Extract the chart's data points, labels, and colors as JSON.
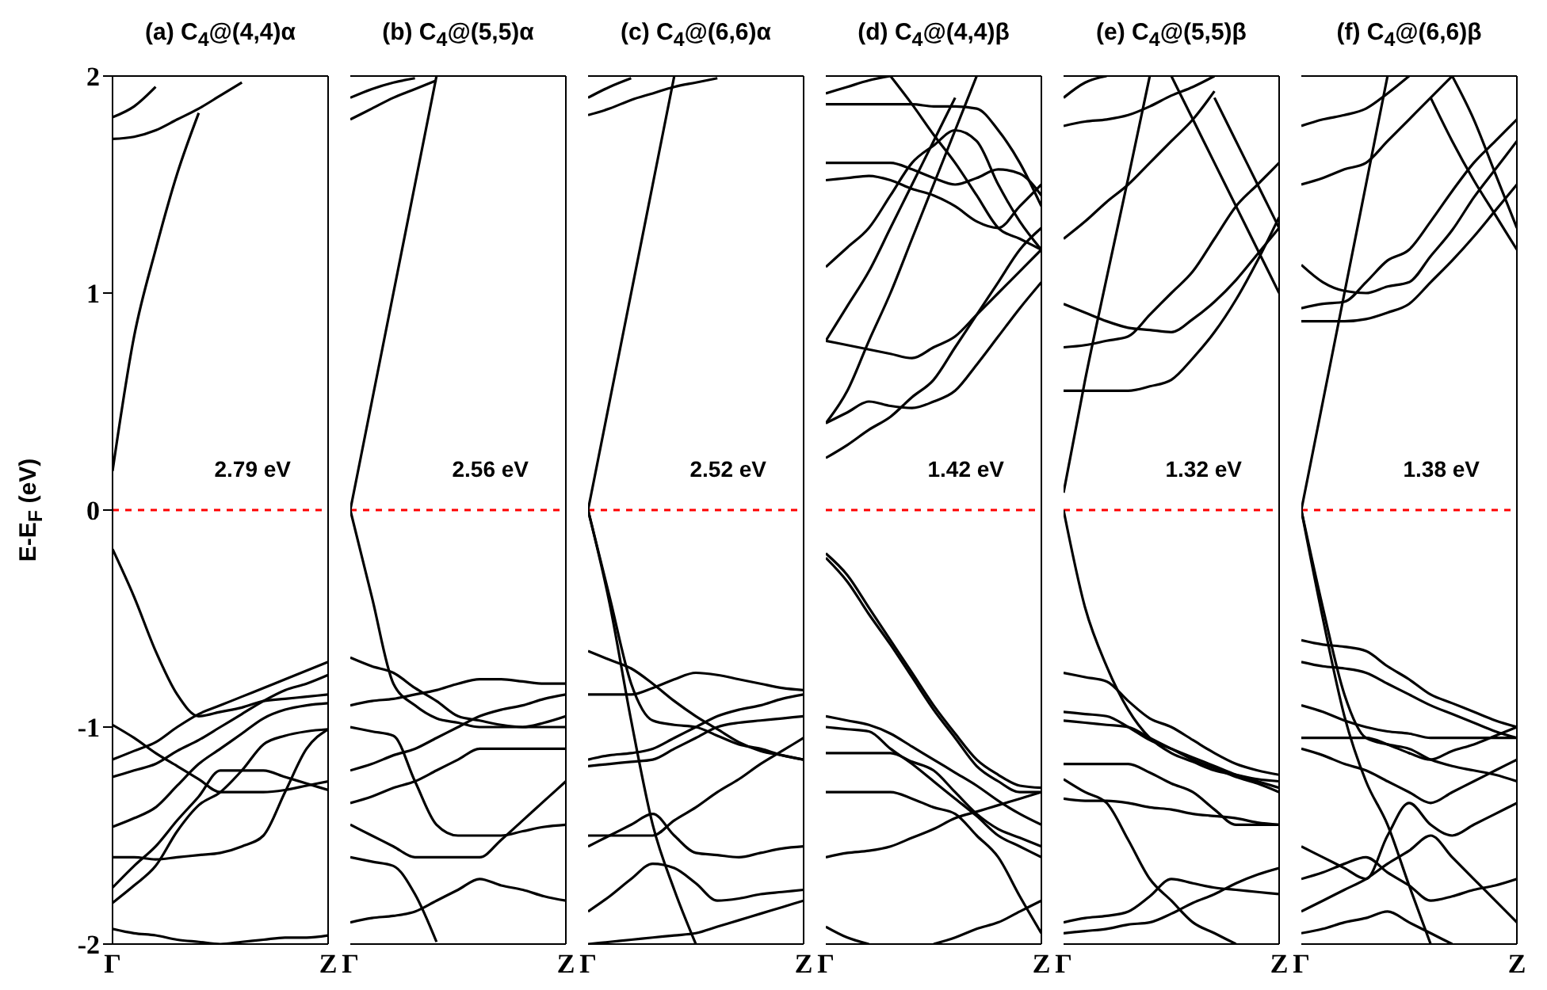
{
  "chart_data": [
    {
      "type": "line",
      "title": "(a) C$_{4}$@(4,4)α",
      "ylabel": "E-E$_{F}$ (eV)",
      "annotations": [
        "2.79 eV"
      ],
      "categories": [
        "Γ",
        null,
        null,
        null,
        null,
        null,
        null,
        null,
        null,
        null,
        "Z"
      ],
      "ylim": [
        -2,
        2
      ],
      "yticks": [
        -2,
        -1,
        0,
        1,
        2
      ],
      "ref_lines": [
        {
          "axis": "y",
          "value": 0,
          "color": "#ff0000",
          "line_style": "dashed"
        }
      ],
      "series": [
        {
          "color": "#000000",
          "values": [
            0.18,
            0.8,
            1.2,
            1.55,
            1.83,
            null,
            null,
            null,
            null,
            null,
            null
          ]
        },
        {
          "color": "#000000",
          "values": [
            1.71,
            1.72,
            1.75,
            1.8,
            1.85,
            1.91,
            1.97,
            null,
            null,
            null,
            null
          ]
        },
        {
          "color": "#000000",
          "values": [
            1.81,
            1.86,
            1.95,
            null,
            null,
            null,
            null,
            null,
            null,
            null,
            null
          ]
        },
        {
          "color": "#000000",
          "values": [
            -0.18,
            -0.4,
            -0.65,
            -0.85,
            -0.95,
            -0.93,
            -0.91,
            -0.88,
            -0.87,
            -0.86,
            -0.85
          ]
        },
        {
          "color": "#000000",
          "values": [
            -0.99,
            -1.05,
            -1.12,
            -1.18,
            -1.24,
            -1.3,
            -1.3,
            -1.3,
            -1.29,
            -1.27,
            -1.25
          ]
        },
        {
          "color": "#000000",
          "values": [
            -1.15,
            -1.11,
            -1.07,
            -1.0,
            -0.94,
            -0.9,
            -0.86,
            -0.82,
            -0.78,
            -0.74,
            -0.7
          ]
        },
        {
          "color": "#000000",
          "values": [
            -1.23,
            -1.2,
            -1.17,
            -1.11,
            -1.06,
            -1.0,
            -0.94,
            -0.88,
            -0.83,
            -0.8,
            -0.76
          ]
        },
        {
          "color": "#000000",
          "values": [
            -1.46,
            -1.42,
            -1.37,
            -1.27,
            -1.17,
            -1.1,
            -1.03,
            -0.96,
            -0.92,
            -0.9,
            -0.89
          ]
        },
        {
          "color": "#000000",
          "values": [
            -1.6,
            -1.6,
            -1.61,
            -1.6,
            -1.59,
            -1.58,
            -1.55,
            -1.5,
            -1.3,
            -1.1,
            -1.01
          ]
        },
        {
          "color": "#000000",
          "values": [
            -1.74,
            -1.64,
            -1.55,
            -1.43,
            -1.32,
            -1.2,
            -1.2,
            -1.2,
            -1.23,
            -1.26,
            -1.29
          ]
        },
        {
          "color": "#000000",
          "values": [
            -1.81,
            -1.73,
            -1.64,
            -1.48,
            -1.36,
            -1.3,
            -1.2,
            -1.08,
            -1.04,
            -1.02,
            -1.01
          ]
        },
        {
          "color": "#000000",
          "values": [
            -1.93,
            -1.95,
            -1.96,
            -1.98,
            -1.99,
            -2,
            -1.99,
            -1.98,
            -1.97,
            -1.97,
            -1.96
          ]
        }
      ]
    },
    {
      "type": "line",
      "title": "(b) C$_{4}$@(5,5)α",
      "annotations": [
        "2.56 eV"
      ],
      "tick_labels": "x",
      "categories": [
        "Γ",
        null,
        null,
        null,
        null,
        null,
        null,
        null,
        null,
        null,
        "Z"
      ],
      "ylim": [
        -2,
        2
      ],
      "yticks": [
        -2,
        -1,
        0,
        1,
        2
      ],
      "ref_lines": [
        {
          "axis": "y",
          "value": 0,
          "color": "#ff0000",
          "line_style": "dashed"
        }
      ],
      "series": [
        {
          "color": "#000000",
          "values": [
            0,
            0.5,
            1,
            1.5,
            2,
            null,
            null,
            null,
            null,
            null,
            null
          ]
        },
        {
          "color": "#000000",
          "values": [
            1.8,
            1.85,
            1.9,
            1.94,
            1.98,
            null,
            null,
            null,
            null,
            null,
            null
          ]
        },
        {
          "color": "#000000",
          "values": [
            1.9,
            1.94,
            1.97,
            1.99,
            null,
            null,
            null,
            null,
            null,
            null,
            null
          ]
        },
        {
          "color": "#000000",
          "values": [
            0,
            -0.4,
            -0.8,
            -0.9,
            -0.96,
            -0.98,
            -1,
            -1,
            -1,
            -1,
            -1
          ]
        },
        {
          "color": "#000000",
          "values": [
            -0.68,
            -0.72,
            -0.75,
            -0.82,
            -0.88,
            -0.95,
            -0.97,
            -0.99,
            -1,
            -0.98,
            -0.95
          ]
        },
        {
          "color": "#000000",
          "values": [
            -0.9,
            -0.88,
            -0.87,
            -0.85,
            -0.83,
            -0.8,
            -0.78,
            -0.78,
            -0.79,
            -0.8,
            -0.8
          ]
        },
        {
          "color": "#000000",
          "values": [
            -1,
            -1.02,
            -1.04,
            -1.25,
            -1.45,
            -1.5,
            -1.5,
            -1.5,
            -1.48,
            -1.46,
            -1.45
          ]
        },
        {
          "color": "#000000",
          "values": [
            -1.2,
            -1.17,
            -1.13,
            -1.1,
            -1.05,
            -1,
            -0.95,
            -0.92,
            -0.9,
            -0.87,
            -0.85
          ]
        },
        {
          "color": "#000000",
          "values": [
            -1.35,
            -1.32,
            -1.28,
            -1.25,
            -1.2,
            -1.15,
            -1.1,
            -1.1,
            -1.1,
            -1.1,
            -1.1
          ]
        },
        {
          "color": "#000000",
          "values": [
            -1.45,
            -1.5,
            -1.55,
            -1.6,
            -1.6,
            -1.6,
            -1.6,
            -1.52,
            -1.43,
            -1.34,
            -1.25
          ]
        },
        {
          "color": "#000000",
          "values": [
            -1.6,
            -1.62,
            -1.64,
            -1.77,
            -1.99,
            null,
            null,
            null,
            null,
            null,
            null
          ]
        },
        {
          "color": "#000000",
          "values": [
            -1.9,
            -1.88,
            -1.87,
            -1.85,
            -1.8,
            -1.75,
            -1.7,
            -1.73,
            -1.75,
            -1.78,
            -1.8
          ]
        }
      ]
    },
    {
      "type": "line",
      "title": "(c) C$_{4}$@(6,6)α",
      "annotations": [
        "2.52 eV"
      ],
      "tick_labels": "x",
      "categories": [
        "Γ",
        null,
        null,
        null,
        null,
        null,
        null,
        null,
        null,
        null,
        "Z"
      ],
      "ylim": [
        -2,
        2
      ],
      "yticks": [
        -2,
        -1,
        0,
        1,
        2
      ],
      "ref_lines": [
        {
          "axis": "y",
          "value": 0,
          "color": "#ff0000",
          "line_style": "dashed"
        }
      ],
      "series": [
        {
          "color": "#000000",
          "values": [
            0,
            0.5,
            1,
            1.5,
            2,
            null,
            null,
            null,
            null,
            null,
            null
          ]
        },
        {
          "color": "#000000",
          "values": [
            1.82,
            1.85,
            1.89,
            1.92,
            1.95,
            1.97,
            1.99,
            null,
            null,
            null,
            null
          ]
        },
        {
          "color": "#000000",
          "values": [
            1.9,
            1.95,
            1.99,
            null,
            null,
            null,
            null,
            null,
            null,
            null,
            null
          ]
        },
        {
          "color": "#000000",
          "values": [
            0,
            -0.4,
            -0.8,
            -0.97,
            -0.99,
            -1,
            -1.04,
            -1.08,
            -1.1,
            -1.13,
            -1.15
          ]
        },
        {
          "color": "#000000",
          "values": [
            0,
            -0.43,
            -0.97,
            -1.45,
            -1.75,
            -2,
            null,
            null,
            null,
            null,
            null
          ]
        },
        {
          "color": "#000000",
          "values": [
            -0.65,
            -0.69,
            -0.73,
            -0.8,
            -0.88,
            -0.95,
            -1.01,
            -1.07,
            -1.11,
            -1.13,
            -1.15
          ]
        },
        {
          "color": "#000000",
          "values": [
            -0.85,
            -0.85,
            -0.85,
            -0.82,
            -0.78,
            -0.75,
            -0.76,
            -0.78,
            -0.8,
            -0.82,
            -0.83
          ]
        },
        {
          "color": "#000000",
          "values": [
            -1.15,
            -1.13,
            -1.12,
            -1.1,
            -1.05,
            -1.0,
            -0.95,
            -0.92,
            -0.9,
            -0.87,
            -0.85
          ]
        },
        {
          "color": "#000000",
          "values": [
            -1.18,
            -1.17,
            -1.16,
            -1.15,
            -1.1,
            -1.05,
            -1.0,
            -0.98,
            -0.97,
            -0.96,
            -0.95
          ]
        },
        {
          "color": "#000000",
          "values": [
            -1.5,
            -1.5,
            -1.5,
            -1.5,
            -1.43,
            -1.37,
            -1.3,
            -1.24,
            -1.17,
            -1.11,
            -1.05
          ]
        },
        {
          "color": "#000000",
          "values": [
            -1.55,
            -1.5,
            -1.45,
            -1.4,
            -1.5,
            -1.58,
            -1.59,
            -1.6,
            -1.58,
            -1.56,
            -1.55
          ]
        },
        {
          "color": "#000000",
          "values": [
            -1.85,
            -1.78,
            -1.7,
            -1.63,
            -1.65,
            -1.72,
            -1.8,
            -1.79,
            -1.77,
            -1.76,
            -1.75
          ]
        },
        {
          "color": "#000000",
          "values": [
            -2,
            -1.99,
            -1.98,
            -1.97,
            -1.96,
            -1.95,
            -1.92,
            -1.89,
            -1.86,
            -1.83,
            -1.8
          ]
        }
      ]
    },
    {
      "type": "line",
      "title": "(d) C$_{4}$@(4,4)β",
      "annotations": [
        "1.42 eV"
      ],
      "tick_labels": "x",
      "categories": [
        "Γ",
        null,
        null,
        null,
        null,
        null,
        null,
        null,
        null,
        null,
        "Z"
      ],
      "ylim": [
        -2,
        2
      ],
      "yticks": [
        -2,
        -1,
        0,
        1,
        2
      ],
      "ref_lines": [
        {
          "axis": "y",
          "value": 0,
          "color": "#ff0000",
          "line_style": "dashed"
        }
      ],
      "series": [
        {
          "color": "#000000",
          "values": [
            0.24,
            0.3,
            0.37,
            0.43,
            0.52,
            0.6,
            0.75,
            0.9,
            1.05,
            1.2,
            1.3
          ]
        },
        {
          "color": "#000000",
          "values": [
            0.4,
            0.55,
            0.78,
            1,
            1.25,
            1.5,
            1.75,
            2,
            null,
            null,
            null
          ]
        },
        {
          "color": "#000000",
          "values": [
            0.4,
            0.45,
            0.5,
            0.48,
            0.47,
            0.5,
            0.55,
            0.67,
            0.8,
            0.93,
            1.05
          ]
        },
        {
          "color": "#000000",
          "values": [
            0.78,
            0.76,
            0.74,
            0.72,
            0.7,
            0.75,
            0.8,
            0.9,
            1,
            1.1,
            1.2
          ]
        },
        {
          "color": "#000000",
          "values": [
            0.78,
            0.94,
            1.1,
            1.3,
            1.5,
            1.7,
            1.9,
            null,
            null,
            null,
            null
          ]
        },
        {
          "color": "#000000",
          "values": [
            1.12,
            1.21,
            1.3,
            1.45,
            1.6,
            1.68,
            1.75,
            1.7,
            1.5,
            1.33,
            1.2
          ]
        },
        {
          "color": "#000000",
          "values": [
            1.52,
            1.53,
            1.54,
            1.52,
            1.48,
            1.45,
            1.4,
            1.33,
            1.3,
            1.4,
            1.5
          ]
        },
        {
          "color": "#000000",
          "values": [
            1.6,
            1.6,
            1.6,
            1.6,
            1.57,
            1.53,
            1.5,
            1.53,
            1.57,
            1.55,
            1.45
          ]
        },
        {
          "color": "#000000",
          "values": [
            1.87,
            1.87,
            1.87,
            1.87,
            1.87,
            1.86,
            1.86,
            1.85,
            1.75,
            1.6,
            1.4
          ]
        },
        {
          "color": "#000000",
          "values": [
            1.92,
            1.95,
            1.98,
            2,
            null,
            null,
            null,
            null,
            null,
            null,
            null
          ]
        },
        {
          "color": "#000000",
          "values": [
            null,
            null,
            null,
            2,
            1.87,
            1.73,
            1.6,
            1.45,
            1.3,
            1.25,
            1.2
          ]
        },
        {
          "color": "#000000",
          "values": [
            -0.2,
            -0.3,
            -0.45,
            -0.6,
            -0.75,
            -0.9,
            -1.03,
            -1.15,
            -1.22,
            -1.27,
            -1.28
          ]
        },
        {
          "color": "#000000",
          "values": [
            -0.22,
            -0.33,
            -0.48,
            -0.62,
            -0.77,
            -0.92,
            -1.05,
            -1.18,
            -1.25,
            -1.3,
            -1.3
          ]
        },
        {
          "color": "#000000",
          "values": [
            -0.95,
            -0.97,
            -0.99,
            -1.03,
            -1.09,
            -1.15,
            -1.21,
            -1.27,
            -1.34,
            -1.4,
            -1.45
          ]
        },
        {
          "color": "#000000",
          "values": [
            -1,
            -1.01,
            -1.02,
            -1.1,
            -1.17,
            -1.25,
            -1.33,
            -1.41,
            -1.5,
            -1.55,
            -1.6
          ]
        },
        {
          "color": "#000000",
          "values": [
            -1.12,
            -1.12,
            -1.12,
            -1.12,
            -1.16,
            -1.2,
            -1.3,
            -1.4,
            -1.47,
            -1.51,
            -1.55
          ]
        },
        {
          "color": "#000000",
          "values": [
            -1.3,
            -1.3,
            -1.3,
            -1.3,
            -1.33,
            -1.37,
            -1.4,
            -1.5,
            -1.6,
            -1.78,
            -1.95
          ]
        },
        {
          "color": "#000000",
          "values": [
            -1.6,
            -1.58,
            -1.57,
            -1.55,
            -1.51,
            -1.47,
            -1.42,
            -1.39,
            -1.36,
            -1.33,
            -1.3
          ]
        },
        {
          "color": "#000000",
          "values": [
            -1.92,
            -1.97,
            -2,
            null,
            null,
            null,
            null,
            null,
            null,
            null,
            null
          ]
        },
        {
          "color": "#000000",
          "values": [
            null,
            null,
            null,
            null,
            null,
            -2,
            -1.97,
            -1.93,
            -1.9,
            -1.85,
            -1.8
          ]
        }
      ]
    },
    {
      "type": "line",
      "title": "(e) C$_{4}$@(5,5)β",
      "annotations": [
        "1.32 eV"
      ],
      "tick_labels": "x",
      "categories": [
        "Γ",
        null,
        null,
        null,
        null,
        null,
        null,
        null,
        null,
        null,
        "Z"
      ],
      "ylim": [
        -2,
        2
      ],
      "yticks": [
        -2,
        -1,
        0,
        1,
        2
      ],
      "ref_lines": [
        {
          "axis": "y",
          "value": 0,
          "color": "#ff0000",
          "line_style": "dashed"
        }
      ],
      "series": [
        {
          "color": "#000000",
          "values": [
            0.08,
            0.6,
            1.07,
            1.53,
            2,
            null,
            null,
            null,
            null,
            null,
            null
          ]
        },
        {
          "color": "#000000",
          "values": [
            0.55,
            0.55,
            0.55,
            0.55,
            0.57,
            0.6,
            0.7,
            0.82,
            0.97,
            1.15,
            1.35
          ]
        },
        {
          "color": "#000000",
          "values": [
            0.75,
            0.76,
            0.78,
            0.8,
            0.9,
            1,
            1.1,
            1.25,
            1.4,
            1.5,
            1.6
          ]
        },
        {
          "color": "#000000",
          "values": [
            0.95,
            0.91,
            0.87,
            0.84,
            0.83,
            0.82,
            0.88,
            0.96,
            1.06,
            1.18,
            1.3
          ]
        },
        {
          "color": "#000000",
          "values": [
            1.25,
            1.33,
            1.42,
            1.5,
            1.6,
            1.7,
            1.8,
            1.93,
            null,
            null,
            null
          ]
        },
        {
          "color": "#000000",
          "values": [
            1.77,
            1.79,
            1.8,
            1.82,
            1.86,
            1.91,
            1.95,
            2,
            null,
            null,
            null
          ]
        },
        {
          "color": "#000000",
          "values": [
            1.9,
            1.97,
            2,
            null,
            null,
            null,
            null,
            null,
            null,
            null,
            null
          ]
        },
        {
          "color": "#000000",
          "values": [
            null,
            null,
            null,
            null,
            null,
            2,
            1.8,
            1.6,
            1.4,
            1.2,
            1
          ]
        },
        {
          "color": "#000000",
          "values": [
            null,
            null,
            null,
            null,
            null,
            null,
            null,
            1.9,
            1.7,
            1.5,
            1.3
          ]
        },
        {
          "color": "#000000",
          "values": [
            0,
            -0.45,
            -0.72,
            -0.92,
            -1.05,
            -1.12,
            -1.16,
            -1.2,
            -1.22,
            -1.24,
            -1.25
          ]
        },
        {
          "color": "#000000",
          "values": [
            -0.75,
            -0.77,
            -0.79,
            -0.88,
            -0.96,
            -1,
            -1.06,
            -1.12,
            -1.17,
            -1.2,
            -1.22
          ]
        },
        {
          "color": "#000000",
          "values": [
            -0.93,
            -0.94,
            -0.95,
            -1.0,
            -1.06,
            -1.1,
            -1.14,
            -1.18,
            -1.22,
            -1.25,
            -1.28
          ]
        },
        {
          "color": "#000000",
          "values": [
            -0.97,
            -0.98,
            -0.99,
            -1,
            -1.05,
            -1.1,
            -1.15,
            -1.19,
            -1.23,
            -1.26,
            -1.3
          ]
        },
        {
          "color": "#000000",
          "values": [
            -1.17,
            -1.17,
            -1.17,
            -1.17,
            -1.21,
            -1.26,
            -1.3,
            -1.38,
            -1.45,
            -1.45,
            -1.45
          ]
        },
        {
          "color": "#000000",
          "values": [
            -1.33,
            -1.34,
            -1.34,
            -1.35,
            -1.37,
            -1.38,
            -1.4,
            -1.41,
            -1.42,
            -1.44,
            -1.45
          ]
        },
        {
          "color": "#000000",
          "values": [
            -1.24,
            -1.3,
            -1.35,
            -1.52,
            -1.7,
            -1.8,
            -1.9,
            -1.95,
            -2,
            null,
            null
          ]
        },
        {
          "color": "#000000",
          "values": [
            -1.9,
            -1.88,
            -1.87,
            -1.85,
            -1.78,
            -1.7,
            -1.72,
            -1.74,
            -1.75,
            -1.76,
            -1.77
          ]
        },
        {
          "color": "#000000",
          "values": [
            -1.95,
            -1.94,
            -1.93,
            -1.91,
            -1.9,
            -1.86,
            -1.81,
            -1.77,
            -1.72,
            -1.68,
            -1.65
          ]
        }
      ]
    },
    {
      "type": "line",
      "title": "(f) C$_{4}$@(6,6)β",
      "annotations": [
        "1.38 eV"
      ],
      "tick_labels": "x",
      "categories": [
        "Γ",
        null,
        null,
        null,
        null,
        null,
        null,
        null,
        null,
        null,
        "Z"
      ],
      "ylim": [
        -2,
        2
      ],
      "yticks": [
        -2,
        -1,
        0,
        1,
        2
      ],
      "ref_lines": [
        {
          "axis": "y",
          "value": 0,
          "color": "#ff0000",
          "line_style": "dashed"
        }
      ],
      "series": [
        {
          "color": "#000000",
          "values": [
            0,
            0.5,
            1.0,
            1.5,
            2,
            null,
            null,
            null,
            null,
            null,
            null
          ]
        },
        {
          "color": "#000000",
          "values": [
            0.87,
            0.87,
            0.87,
            0.88,
            0.91,
            0.95,
            1.05,
            1.15,
            1.26,
            1.38,
            1.5
          ]
        },
        {
          "color": "#000000",
          "values": [
            0.93,
            0.95,
            0.96,
            1.05,
            1.15,
            1.2,
            1.33,
            1.47,
            1.6,
            1.7,
            1.8
          ]
        },
        {
          "color": "#000000",
          "values": [
            1.13,
            1.05,
            1.01,
            1.0,
            1.03,
            1.05,
            1.17,
            1.29,
            1.44,
            1.57,
            1.7
          ]
        },
        {
          "color": "#000000",
          "values": [
            1.5,
            1.53,
            1.57,
            1.6,
            1.7,
            1.8,
            1.9,
            2,
            null,
            null,
            null
          ]
        },
        {
          "color": "#000000",
          "values": [
            1.77,
            1.8,
            1.82,
            1.85,
            1.92,
            2,
            null,
            null,
            null,
            null,
            null
          ]
        },
        {
          "color": "#000000",
          "values": [
            null,
            null,
            null,
            null,
            null,
            null,
            1.9,
            1.7,
            1.52,
            1.36,
            1.2
          ]
        },
        {
          "color": "#000000",
          "values": [
            null,
            null,
            null,
            null,
            null,
            null,
            null,
            2,
            1.8,
            1.55,
            1.3
          ]
        },
        {
          "color": "#000000",
          "values": [
            0,
            -0.45,
            -0.85,
            -1.05,
            -1.08,
            -1.1,
            -1.15,
            -1.18,
            -1.2,
            -1.22,
            -1.25
          ]
        },
        {
          "color": "#000000",
          "values": [
            0,
            -0.5,
            -0.95,
            -1.25,
            -1.45,
            -1.73,
            -2,
            null,
            null,
            null,
            null
          ]
        },
        {
          "color": "#000000",
          "values": [
            -0.6,
            -0.62,
            -0.63,
            -0.65,
            -0.72,
            -0.78,
            -0.85,
            -0.89,
            -0.93,
            -0.97,
            -1
          ]
        },
        {
          "color": "#000000",
          "values": [
            -0.7,
            -0.72,
            -0.73,
            -0.75,
            -0.8,
            -0.85,
            -0.9,
            -0.94,
            -0.98,
            -1.02,
            -1.05
          ]
        },
        {
          "color": "#000000",
          "values": [
            -0.9,
            -0.93,
            -0.97,
            -1,
            -1.02,
            -1.03,
            -1.05,
            -1.05,
            -1.05,
            -1.05,
            -1.05
          ]
        },
        {
          "color": "#000000",
          "values": [
            -1.05,
            -1.05,
            -1.05,
            -1.05,
            -1.08,
            -1.12,
            -1.15,
            -1.11,
            -1.08,
            -1.04,
            -1
          ]
        },
        {
          "color": "#000000",
          "values": [
            -1.1,
            -1.13,
            -1.17,
            -1.2,
            -1.25,
            -1.3,
            -1.35,
            -1.3,
            -1.25,
            -1.2,
            -1.15
          ]
        },
        {
          "color": "#000000",
          "values": [
            -1.55,
            -1.6,
            -1.65,
            -1.7,
            -1.5,
            -1.35,
            -1.45,
            -1.5,
            -1.45,
            -1.4,
            -1.35
          ]
        },
        {
          "color": "#000000",
          "values": [
            -1.7,
            -1.67,
            -1.63,
            -1.6,
            -1.67,
            -1.73,
            -1.8,
            -1.78,
            -1.75,
            -1.73,
            -1.7
          ]
        },
        {
          "color": "#000000",
          "values": [
            -1.85,
            -1.8,
            -1.75,
            -1.7,
            -1.63,
            -1.57,
            -1.5,
            -1.6,
            -1.7,
            -1.8,
            -1.9
          ]
        },
        {
          "color": "#000000",
          "values": [
            -1.95,
            -1.93,
            -1.9,
            -1.88,
            -1.85,
            -1.9,
            -1.95,
            -2,
            null,
            null,
            null
          ]
        }
      ]
    }
  ]
}
